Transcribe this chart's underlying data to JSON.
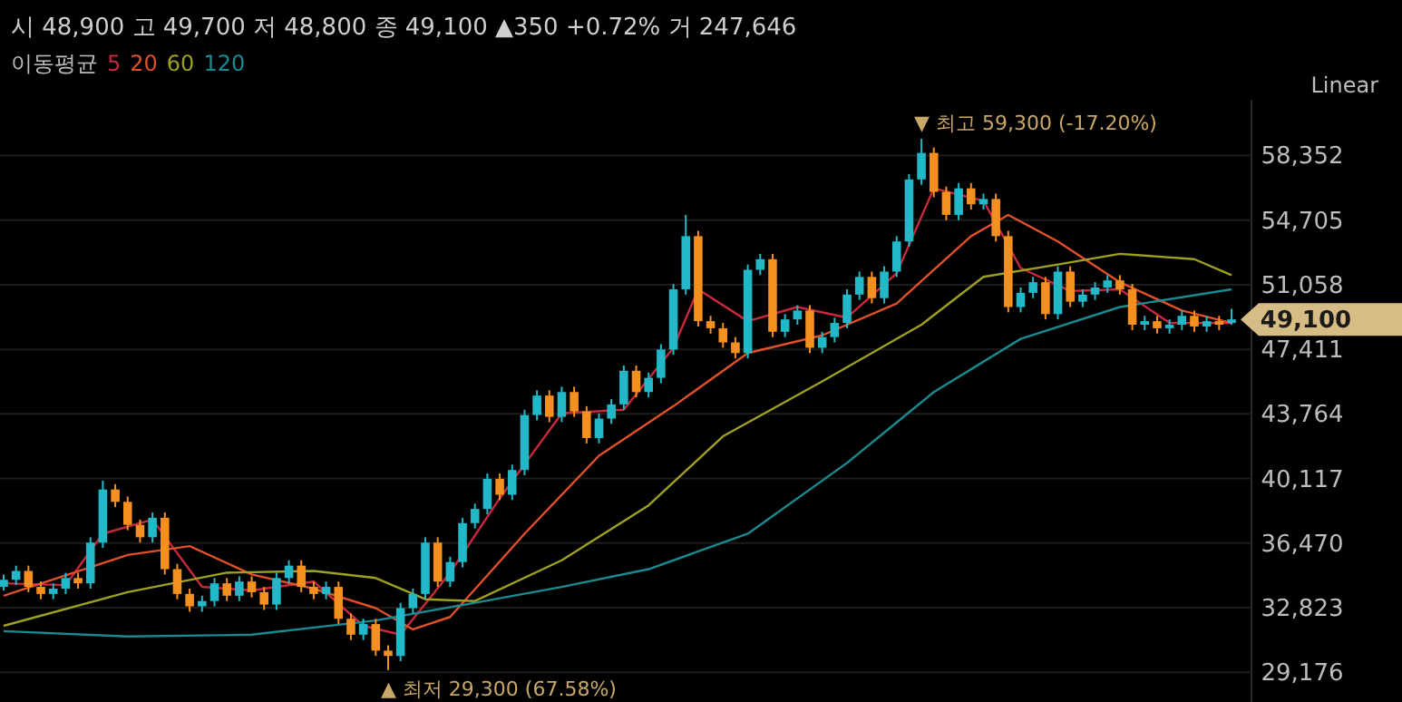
{
  "chart_data": {
    "type": "candlestick",
    "subtitle": "시 48,900 고 49,700 저 48,800 종 49,100 ▲350 +0.72% 거 247,646",
    "legend_title": "이동평균",
    "legend": "top left",
    "grid": "y",
    "tick_labels": "y",
    "categories": [
      null,
      null,
      null,
      null,
      null,
      null,
      null,
      null,
      null,
      null,
      null,
      null,
      null,
      null,
      null,
      null,
      null,
      null,
      null,
      null,
      null,
      null,
      null,
      null,
      null,
      null,
      null,
      null,
      null,
      null,
      null,
      null,
      null,
      null,
      null,
      null,
      null,
      null,
      null,
      null,
      null,
      null,
      null,
      null,
      null,
      null,
      null,
      null,
      null,
      null,
      null,
      null,
      null,
      null,
      null,
      null,
      null,
      null,
      null,
      null,
      null,
      null,
      null,
      null,
      null,
      null,
      null,
      null,
      null,
      null,
      null,
      null,
      null,
      null,
      null,
      null,
      null,
      null,
      null,
      null,
      null,
      null,
      null,
      null,
      null,
      null,
      null,
      null,
      null,
      null,
      null,
      null,
      null,
      null,
      null,
      null,
      null,
      null,
      null,
      null
    ],
    "ohlc": [
      [
        34000,
        34700,
        33800,
        34400
      ],
      [
        34400,
        35200,
        34100,
        34900
      ],
      [
        34900,
        35200,
        33700,
        34000
      ],
      [
        34000,
        34300,
        33300,
        33600
      ],
      [
        33600,
        34200,
        33300,
        33900
      ],
      [
        33900,
        34800,
        33600,
        34500
      ],
      [
        34500,
        34800,
        33900,
        34200
      ],
      [
        34200,
        36800,
        33900,
        36500
      ],
      [
        36500,
        40000,
        36200,
        39500
      ],
      [
        39500,
        39800,
        38500,
        38800
      ],
      [
        38800,
        39100,
        37200,
        37500
      ],
      [
        37500,
        37800,
        36500,
        36800
      ],
      [
        36800,
        38200,
        36500,
        37900
      ],
      [
        37900,
        38200,
        34700,
        35000
      ],
      [
        35000,
        35300,
        33300,
        33600
      ],
      [
        33600,
        33900,
        32600,
        32900
      ],
      [
        32900,
        33500,
        32600,
        33200
      ],
      [
        33200,
        34500,
        32900,
        34200
      ],
      [
        34200,
        34500,
        33200,
        33500
      ],
      [
        33500,
        34600,
        33200,
        34300
      ],
      [
        34300,
        34600,
        33400,
        33700
      ],
      [
        33700,
        34000,
        32700,
        33000
      ],
      [
        33000,
        34800,
        32700,
        34500
      ],
      [
        34500,
        35500,
        34200,
        35200
      ],
      [
        35200,
        35500,
        33700,
        34000
      ],
      [
        34000,
        34300,
        33300,
        33600
      ],
      [
        33600,
        34300,
        33300,
        34000
      ],
      [
        34000,
        34300,
        31900,
        32200
      ],
      [
        32200,
        32500,
        31000,
        31300
      ],
      [
        31300,
        32200,
        31000,
        31900
      ],
      [
        31900,
        32200,
        30100,
        30400
      ],
      [
        30400,
        30700,
        29300,
        30100
      ],
      [
        30100,
        33100,
        29800,
        32800
      ],
      [
        32800,
        33900,
        32500,
        33600
      ],
      [
        33600,
        36800,
        33300,
        36500
      ],
      [
        36500,
        36800,
        34000,
        34300
      ],
      [
        34300,
        35700,
        34000,
        35400
      ],
      [
        35400,
        37900,
        35100,
        37600
      ],
      [
        37600,
        38700,
        37300,
        38400
      ],
      [
        38400,
        40400,
        38100,
        40100
      ],
      [
        40100,
        40400,
        38900,
        39200
      ],
      [
        39200,
        40900,
        38900,
        40600
      ],
      [
        40600,
        44000,
        40300,
        43700
      ],
      [
        43700,
        45100,
        43400,
        44800
      ],
      [
        44800,
        45100,
        43300,
        43600
      ],
      [
        43600,
        45300,
        43300,
        45000
      ],
      [
        45000,
        45300,
        43600,
        43900
      ],
      [
        43900,
        44200,
        42100,
        42400
      ],
      [
        42400,
        43800,
        42100,
        43500
      ],
      [
        43500,
        44600,
        43200,
        44300
      ],
      [
        44300,
        46500,
        44000,
        46200
      ],
      [
        46200,
        46500,
        44700,
        45000
      ],
      [
        45000,
        46100,
        44700,
        45800
      ],
      [
        45800,
        47700,
        45500,
        47400
      ],
      [
        47400,
        51100,
        47100,
        50800
      ],
      [
        50800,
        55000,
        50500,
        53800
      ],
      [
        53800,
        54100,
        48700,
        49000
      ],
      [
        49000,
        49300,
        48300,
        48600
      ],
      [
        48600,
        48900,
        47500,
        47800
      ],
      [
        47800,
        48100,
        46900,
        47200
      ],
      [
        47200,
        52200,
        46900,
        51900
      ],
      [
        51900,
        52800,
        51600,
        52500
      ],
      [
        52500,
        52800,
        48100,
        48400
      ],
      [
        48400,
        49400,
        48100,
        49100
      ],
      [
        49100,
        49900,
        48800,
        49600
      ],
      [
        49600,
        49900,
        47200,
        47500
      ],
      [
        47500,
        48400,
        47200,
        48100
      ],
      [
        48100,
        49200,
        47800,
        48900
      ],
      [
        48900,
        50800,
        48600,
        50500
      ],
      [
        50500,
        51800,
        50200,
        51500
      ],
      [
        51500,
        51800,
        50000,
        50300
      ],
      [
        50300,
        52100,
        50000,
        51800
      ],
      [
        51800,
        53800,
        51500,
        53500
      ],
      [
        53500,
        57300,
        53200,
        57000
      ],
      [
        57000,
        59300,
        56700,
        58500
      ],
      [
        58500,
        58800,
        56000,
        56300
      ],
      [
        56300,
        56600,
        54700,
        55000
      ],
      [
        55000,
        56800,
        54700,
        56500
      ],
      [
        56500,
        56800,
        55300,
        55600
      ],
      [
        55600,
        56200,
        55300,
        55900
      ],
      [
        55900,
        56200,
        53500,
        53800
      ],
      [
        53800,
        54100,
        49500,
        49800
      ],
      [
        49800,
        50900,
        49500,
        50600
      ],
      [
        50600,
        51500,
        50300,
        51200
      ],
      [
        51200,
        51500,
        49100,
        49400
      ],
      [
        49400,
        52100,
        49100,
        51800
      ],
      [
        51800,
        52100,
        49800,
        50100
      ],
      [
        50100,
        50800,
        49800,
        50500
      ],
      [
        50500,
        51200,
        50200,
        50900
      ],
      [
        50900,
        51600,
        50600,
        51300
      ],
      [
        51300,
        51600,
        50500,
        50800
      ],
      [
        50800,
        51100,
        48500,
        48800
      ],
      [
        48800,
        49300,
        48500,
        49000
      ],
      [
        49000,
        49300,
        48300,
        48600
      ],
      [
        48600,
        49100,
        48300,
        48800
      ],
      [
        48800,
        49600,
        48500,
        49300
      ],
      [
        49300,
        49600,
        48400,
        48700
      ],
      [
        48700,
        49300,
        48400,
        49000
      ],
      [
        49000,
        49300,
        48500,
        48800
      ],
      [
        48900,
        49700,
        48800,
        49100
      ]
    ],
    "colors": [
      "#22b8c8",
      "#22b8c8",
      "#f39020",
      "#f39020",
      "#22b8c8",
      "#22b8c8",
      "#f39020",
      "#22b8c8",
      "#22b8c8",
      "#f39020",
      "#f39020",
      "#f39020",
      "#22b8c8",
      "#f39020",
      "#f39020",
      "#f39020",
      "#22b8c8",
      "#22b8c8",
      "#f39020",
      "#22b8c8",
      "#f39020",
      "#f39020",
      "#22b8c8",
      "#22b8c8",
      "#f39020",
      "#f39020",
      "#22b8c8",
      "#f39020",
      "#f39020",
      "#22b8c8",
      "#f39020",
      "#f39020",
      "#22b8c8",
      "#22b8c8",
      "#22b8c8",
      "#f39020",
      "#22b8c8",
      "#22b8c8",
      "#22b8c8",
      "#22b8c8",
      "#f39020",
      "#22b8c8",
      "#22b8c8",
      "#22b8c8",
      "#f39020",
      "#22b8c8",
      "#f39020",
      "#f39020",
      "#22b8c8",
      "#22b8c8",
      "#22b8c8",
      "#f39020",
      "#22b8c8",
      "#22b8c8",
      "#22b8c8",
      "#22b8c8",
      "#f39020",
      "#f39020",
      "#f39020",
      "#f39020",
      "#22b8c8",
      "#22b8c8",
      "#f39020",
      "#22b8c8",
      "#22b8c8",
      "#f39020",
      "#22b8c8",
      "#22b8c8",
      "#22b8c8",
      "#22b8c8",
      "#f39020",
      "#22b8c8",
      "#22b8c8",
      "#22b8c8",
      "#22b8c8",
      "#f39020",
      "#f39020",
      "#22b8c8",
      "#f39020",
      "#22b8c8",
      "#f39020",
      "#f39020",
      "#22b8c8",
      "#22b8c8",
      "#f39020",
      "#22b8c8",
      "#f39020",
      "#22b8c8",
      "#22b8c8",
      "#22b8c8",
      "#f39020",
      "#f39020",
      "#22b8c8",
      "#f39020",
      "#22b8c8",
      "#22b8c8",
      "#f39020",
      "#22b8c8",
      "#f39020",
      "#22b8c8"
    ],
    "series": [
      {
        "name": "5",
        "type": "line",
        "color": "#c8283c",
        "values": [
          34200,
          null,
          null,
          null,
          null,
          34100,
          null,
          null,
          37000,
          null,
          null,
          null,
          37800,
          null,
          null,
          null,
          34000,
          null,
          null,
          null,
          33800,
          null,
          null,
          null,
          null,
          34300,
          null,
          null,
          null,
          31800,
          null,
          null,
          31300,
          null,
          null,
          null,
          34800,
          null,
          null,
          null,
          39000,
          null,
          null,
          null,
          null,
          43800,
          null,
          null,
          null,
          null,
          44000,
          null,
          null,
          null,
          47500,
          null,
          50800,
          null,
          null,
          null,
          49000,
          null,
          null,
          null,
          49800,
          null,
          null,
          null,
          49200,
          null,
          null,
          null,
          51700,
          null,
          null,
          56500,
          null,
          null,
          null,
          55800,
          null,
          null,
          52000,
          null,
          null,
          null,
          50700,
          null,
          null,
          null,
          50800,
          null,
          null,
          null,
          48900,
          null,
          null,
          null,
          null,
          48900
        ]
      },
      {
        "name": "20",
        "type": "line",
        "color": "#e0502a",
        "values": [
          33500,
          null,
          null,
          null,
          null,
          null,
          null,
          null,
          null,
          null,
          35800,
          null,
          null,
          null,
          null,
          36300,
          null,
          null,
          null,
          null,
          34700,
          null,
          null,
          null,
          null,
          33900,
          null,
          null,
          null,
          null,
          32800,
          null,
          null,
          31600,
          null,
          null,
          32300,
          null,
          null,
          null,
          null,
          null,
          37000,
          null,
          null,
          null,
          null,
          null,
          41400,
          null,
          null,
          null,
          null,
          null,
          44200,
          null,
          null,
          null,
          null,
          null,
          47200,
          null,
          null,
          null,
          null,
          null,
          48200,
          null,
          null,
          null,
          null,
          null,
          50000,
          null,
          null,
          null,
          null,
          null,
          53800,
          null,
          null,
          55000,
          null,
          null,
          null,
          53500,
          null,
          null,
          null,
          null,
          51200,
          null,
          null,
          null,
          null,
          49600,
          null,
          null,
          null,
          48900
        ]
      },
      {
        "name": "60",
        "type": "line",
        "color": "#a0a020",
        "values": [
          31800,
          null,
          null,
          null,
          null,
          null,
          null,
          null,
          null,
          null,
          33700,
          null,
          null,
          null,
          null,
          null,
          null,
          null,
          34800,
          null,
          null,
          null,
          null,
          null,
          null,
          34900,
          null,
          null,
          null,
          null,
          34500,
          null,
          null,
          null,
          33300,
          null,
          null,
          null,
          33200,
          null,
          null,
          null,
          null,
          null,
          null,
          35500,
          null,
          null,
          null,
          null,
          null,
          null,
          38600,
          null,
          null,
          null,
          null,
          null,
          42500,
          null,
          null,
          null,
          null,
          null,
          null,
          null,
          45600,
          null,
          null,
          null,
          null,
          null,
          null,
          null,
          48800,
          null,
          null,
          null,
          null,
          51500,
          null,
          null,
          null,
          null,
          null,
          52200,
          null,
          null,
          null,
          null,
          52800,
          null,
          null,
          null,
          null,
          null,
          52500,
          null,
          null,
          51600
        ]
      },
      {
        "name": "120",
        "type": "line",
        "color": "#1a8a90",
        "values": [
          31500,
          null,
          null,
          null,
          null,
          null,
          null,
          null,
          null,
          null,
          31200,
          null,
          null,
          null,
          null,
          null,
          null,
          null,
          null,
          null,
          31300,
          null,
          null,
          null,
          null,
          null,
          null,
          null,
          null,
          null,
          32100,
          null,
          null,
          null,
          null,
          null,
          null,
          null,
          33100,
          null,
          null,
          null,
          null,
          null,
          null,
          34000,
          null,
          null,
          null,
          null,
          null,
          null,
          35000,
          null,
          null,
          null,
          null,
          null,
          null,
          null,
          37000,
          null,
          null,
          null,
          null,
          null,
          null,
          null,
          41000,
          null,
          null,
          null,
          null,
          null,
          null,
          45000,
          null,
          null,
          null,
          null,
          null,
          null,
          48000,
          null,
          null,
          null,
          null,
          null,
          null,
          null,
          49800,
          null,
          null,
          null,
          null,
          null,
          null,
          null,
          null,
          50800
        ]
      }
    ],
    "ylim": [
      27500,
      61500
    ],
    "yticks": [
      {
        "value": 29176,
        "label": "29,176"
      },
      {
        "value": 32823,
        "label": "32,823"
      },
      {
        "value": 36470,
        "label": "36,470"
      },
      {
        "value": 40117,
        "label": "40,117"
      },
      {
        "value": 43764,
        "label": "43,764"
      },
      {
        "value": 47411,
        "label": "47,411"
      },
      {
        "value": 51058,
        "label": "51,058"
      },
      {
        "value": 54705,
        "label": "54,705"
      },
      {
        "value": 58352,
        "label": "58,352"
      }
    ],
    "annotations": [
      "Linear",
      "▼ 최고 59,300 (-17.20%)",
      "▲ 최저 29,300 (67.58%)",
      "49,100"
    ]
  }
}
